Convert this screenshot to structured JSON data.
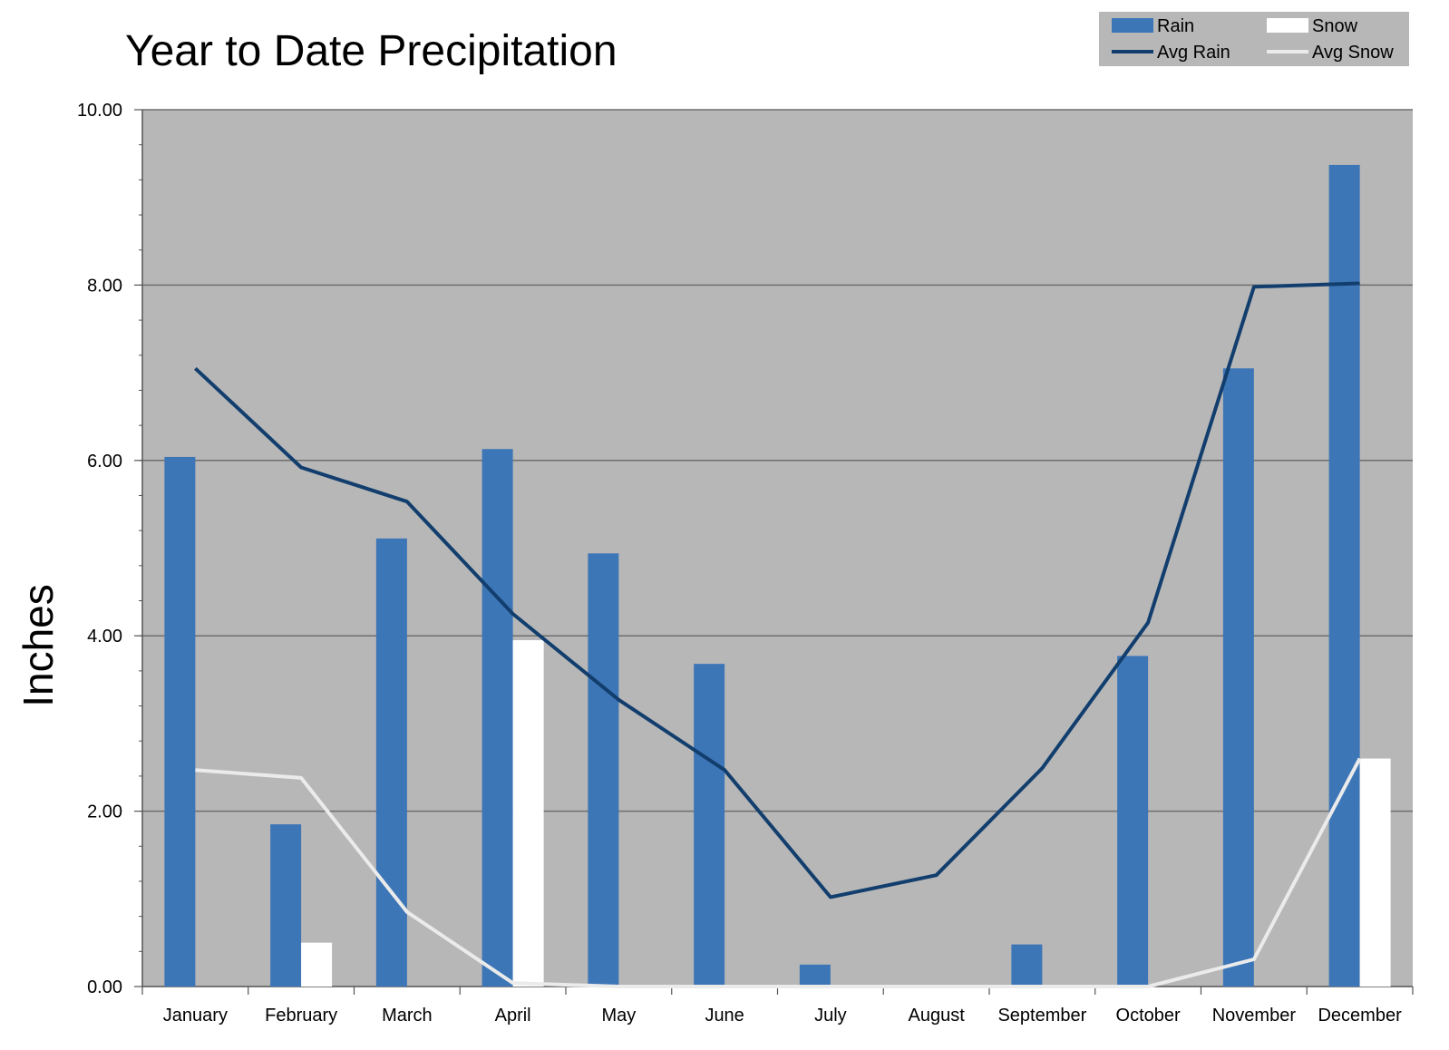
{
  "chart_data": {
    "type": "bar",
    "title": "Year to Date Precipitation",
    "xlabel": "",
    "ylabel": "Inches",
    "ylim": [
      0,
      10
    ],
    "y_ticks": [
      "0.00",
      "2.00",
      "4.00",
      "6.00",
      "8.00",
      "10.00"
    ],
    "categories": [
      "January",
      "February",
      "March",
      "April",
      "May",
      "June",
      "July",
      "August",
      "September",
      "October",
      "November",
      "December"
    ],
    "series": [
      {
        "name": "Rain",
        "kind": "bar",
        "color": "#3d76b7",
        "values": [
          6.04,
          1.85,
          5.11,
          6.13,
          4.94,
          3.68,
          0.25,
          0.0,
          0.48,
          3.77,
          7.05,
          9.37
        ]
      },
      {
        "name": "Snow",
        "kind": "bar",
        "color": "#ffffff",
        "values": [
          0.0,
          0.5,
          0.0,
          3.95,
          0.0,
          0.0,
          0.0,
          0.0,
          0.0,
          0.0,
          0.0,
          2.6
        ]
      },
      {
        "name": "Avg Rain",
        "kind": "line",
        "color": "#123e6e",
        "values": [
          7.05,
          5.92,
          5.53,
          4.25,
          3.27,
          2.47,
          1.02,
          1.27,
          2.49,
          4.15,
          7.98,
          8.02
        ]
      },
      {
        "name": "Avg Snow",
        "kind": "line",
        "color": "#ebebeb",
        "values": [
          2.47,
          2.38,
          0.85,
          0.04,
          0.0,
          0.0,
          0.0,
          0.0,
          0.0,
          0.0,
          0.31,
          2.6
        ]
      }
    ],
    "grid": true,
    "plot_background": "#b7b7b7",
    "legend_position": "top-right"
  }
}
